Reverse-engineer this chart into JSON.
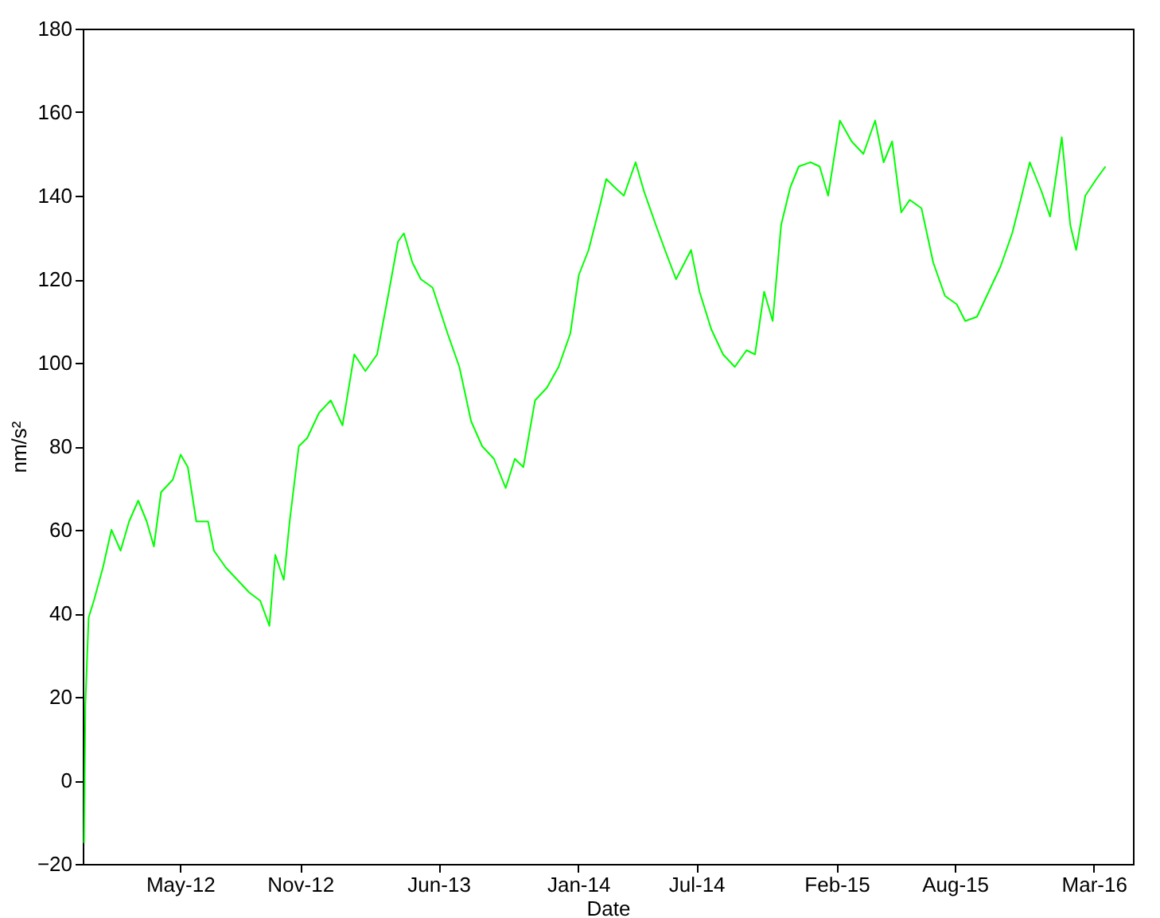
{
  "chart_data": {
    "type": "line",
    "xlabel": "Date",
    "ylabel": "nm/s²",
    "xlim": [
      "2011-12-04",
      "2016-04-30"
    ],
    "ylim": [
      -20,
      180
    ],
    "yticks": [
      -20,
      0,
      20,
      40,
      60,
      80,
      100,
      120,
      140,
      160,
      180
    ],
    "xticks": [
      {
        "value": "2012-05-01",
        "label": "May-12"
      },
      {
        "value": "2012-11-01",
        "label": "Nov-12"
      },
      {
        "value": "2013-06-01",
        "label": "Jun-13"
      },
      {
        "value": "2014-01-01",
        "label": "Jan-14"
      },
      {
        "value": "2014-07-01",
        "label": "Jul-14"
      },
      {
        "value": "2015-02-01",
        "label": "Feb-15"
      },
      {
        "value": "2015-08-01",
        "label": "Aug-15"
      },
      {
        "value": "2016-03-01",
        "label": "Mar-16"
      }
    ],
    "grid": false,
    "series": [
      {
        "color": "#00ff00",
        "x": [
          "2011-12-06",
          "2011-12-08",
          "2011-12-13",
          "2011-12-21",
          "2012-01-04",
          "2012-01-17",
          "2012-01-31",
          "2012-02-13",
          "2012-02-27",
          "2012-03-11",
          "2012-03-22",
          "2012-04-02",
          "2012-04-20",
          "2012-05-02",
          "2012-05-13",
          "2012-05-26",
          "2012-06-13",
          "2012-06-22",
          "2012-07-10",
          "2012-07-28",
          "2012-08-15",
          "2012-09-01",
          "2012-09-15",
          "2012-09-24",
          "2012-10-07",
          "2012-10-16",
          "2012-10-30",
          "2012-11-12",
          "2012-11-30",
          "2012-12-18",
          "2013-01-05",
          "2013-01-23",
          "2013-02-09",
          "2013-02-27",
          "2013-03-17",
          "2013-03-31",
          "2013-04-09",
          "2013-04-22",
          "2013-05-05",
          "2013-05-23",
          "2013-06-15",
          "2013-07-03",
          "2013-07-21",
          "2013-08-07",
          "2013-08-25",
          "2013-09-12",
          "2013-09-26",
          "2013-10-09",
          "2013-10-27",
          "2013-11-14",
          "2013-12-02",
          "2013-12-20",
          "2014-01-02",
          "2014-01-17",
          "2014-02-04",
          "2014-02-13",
          "2014-02-26",
          "2014-03-12",
          "2014-03-30",
          "2014-04-12",
          "2014-04-30",
          "2014-05-14",
          "2014-05-31",
          "2014-06-23",
          "2014-07-06",
          "2014-07-24",
          "2014-08-11",
          "2014-08-29",
          "2014-09-16",
          "2014-09-29",
          "2014-10-13",
          "2014-10-26",
          "2014-11-08",
          "2014-11-22",
          "2014-12-05",
          "2014-12-23",
          "2015-01-06",
          "2015-01-19",
          "2015-02-06",
          "2015-02-24",
          "2015-03-14",
          "2015-04-01",
          "2015-04-14",
          "2015-04-27",
          "2015-05-11",
          "2015-05-24",
          "2015-06-11",
          "2015-06-29",
          "2015-07-17",
          "2015-08-04",
          "2015-08-17",
          "2015-09-04",
          "2015-09-22",
          "2015-10-10",
          "2015-10-28",
          "2015-11-10",
          "2015-11-24",
          "2015-12-12",
          "2015-12-25",
          "2016-01-12",
          "2016-01-25",
          "2016-02-03",
          "2016-02-17",
          "2016-03-05",
          "2016-03-19"
        ],
        "values": [
          -15,
          18,
          39,
          43,
          51,
          60,
          55,
          62,
          67,
          62,
          56,
          69,
          72,
          78,
          75,
          62,
          62,
          55,
          51,
          48,
          45,
          43,
          37,
          54,
          48,
          62,
          80,
          82,
          88,
          91,
          85,
          102,
          98,
          102,
          117,
          129,
          131,
          124,
          120,
          118,
          107,
          99,
          86,
          80,
          77,
          70,
          77,
          75,
          91,
          94,
          99,
          107,
          121,
          127,
          138,
          144,
          142,
          140,
          148,
          141,
          133,
          127,
          120,
          127,
          117,
          108,
          102,
          99,
          103,
          102,
          117,
          110,
          133,
          142,
          147,
          148,
          147,
          140,
          158,
          153,
          150,
          158,
          148,
          153,
          136,
          139,
          137,
          124,
          116,
          114,
          110,
          111,
          117,
          123,
          131,
          139,
          148,
          141,
          135,
          154,
          133,
          127,
          140,
          144,
          147
        ]
      }
    ]
  }
}
